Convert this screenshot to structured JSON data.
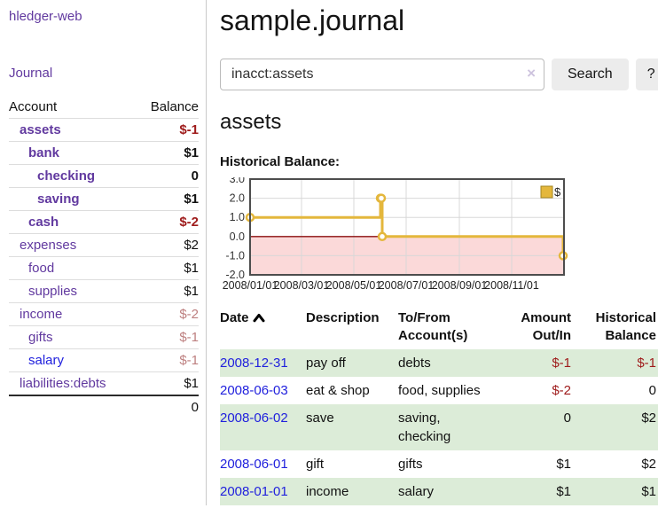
{
  "sidebar": {
    "brand": "hledger-web",
    "nav": {
      "journal": "Journal"
    },
    "accounts_table": {
      "headers": {
        "account": "Account",
        "balance": "Balance"
      },
      "rows": [
        {
          "name": "assets",
          "depth": 1,
          "bold": true,
          "color": "purple",
          "balance": "$-1",
          "balance_class": "neg"
        },
        {
          "name": "bank",
          "depth": 2,
          "bold": true,
          "color": "purple",
          "balance": "$1",
          "balance_class": ""
        },
        {
          "name": "checking",
          "depth": 3,
          "bold": true,
          "color": "purple",
          "balance": "0",
          "balance_class": ""
        },
        {
          "name": "saving",
          "depth": 3,
          "bold": true,
          "color": "purple",
          "balance": "$1",
          "balance_class": ""
        },
        {
          "name": "cash",
          "depth": 2,
          "bold": true,
          "color": "purple",
          "balance": "$-2",
          "balance_class": "neg"
        },
        {
          "name": "expenses",
          "depth": 1,
          "bold": false,
          "color": "purple",
          "balance": "$2",
          "balance_class": ""
        },
        {
          "name": "food",
          "depth": 2,
          "bold": false,
          "color": "purple",
          "balance": "$1",
          "balance_class": ""
        },
        {
          "name": "supplies",
          "depth": 2,
          "bold": false,
          "color": "purple",
          "balance": "$1",
          "balance_class": ""
        },
        {
          "name": "income",
          "depth": 1,
          "bold": false,
          "color": "purple",
          "balance": "$-2",
          "balance_class": "muted"
        },
        {
          "name": "gifts",
          "depth": 2,
          "bold": false,
          "color": "purple",
          "balance": "$-1",
          "balance_class": "muted"
        },
        {
          "name": "salary",
          "depth": 2,
          "bold": false,
          "color": "blue",
          "balance": "$-1",
          "balance_class": "muted"
        },
        {
          "name": "liabilities:debts",
          "depth": 1,
          "bold": false,
          "color": "purple",
          "balance": "$1",
          "balance_class": ""
        }
      ],
      "total": "0"
    }
  },
  "main": {
    "title": "sample.journal",
    "search": {
      "query": "inacct:assets",
      "clear_icon": "×",
      "search_label": "Search",
      "help_label": "?"
    },
    "account_heading": "assets"
  },
  "chart_data": {
    "type": "line",
    "step": true,
    "title": "Historical Balance:",
    "series": [
      {
        "name": "$",
        "points": [
          {
            "date": "2008-01-01",
            "value": 1
          },
          {
            "date": "2008-06-01",
            "value": 2
          },
          {
            "date": "2008-06-02",
            "value": 2
          },
          {
            "date": "2008-06-03",
            "value": 0
          },
          {
            "date": "2008-12-31",
            "value": -1
          }
        ]
      }
    ],
    "x_range": [
      "2008-01-01",
      "2009-01-01"
    ],
    "ylim": [
      -2.0,
      3.0
    ],
    "y_ticks": [
      3.0,
      2.0,
      1.0,
      0.0,
      -1.0,
      -2.0
    ],
    "x_ticks": [
      {
        "date": "2008-01-01",
        "label": "2008/01/01"
      },
      {
        "date": "2008-03-01",
        "label": "2008/03/01"
      },
      {
        "date": "2008-05-01",
        "label": "2008/05/01"
      },
      {
        "date": "2008-07-01",
        "label": "2008/07/01"
      },
      {
        "date": "2008-09-01",
        "label": "2008/09/01"
      },
      {
        "date": "2008-11-01",
        "label": "2008/11/01"
      }
    ],
    "legend": {
      "label": "$",
      "position": "top-right"
    },
    "grid": true,
    "line_color": "#e4b73c",
    "legend_border_color": "#a3841f",
    "negative_region_fill": "#fbd9d9",
    "zero_line_color": "#8b0f0f",
    "grid_color": "#d8d8d8",
    "border_color": "#4d4d4d",
    "axis_label_color": "#333333"
  },
  "register_table": {
    "headers": [
      "Date",
      "Description",
      "To/From Account(s)",
      "Amount Out/In",
      "Historical Balance"
    ],
    "sort_icon": "chevron-up",
    "rows": [
      {
        "date": "2008-12-31",
        "description": "pay off",
        "accounts": "debts",
        "amount": "$-1",
        "amount_class": "neg",
        "balance": "$-1",
        "balance_class": "neg",
        "shade": true
      },
      {
        "date": "2008-06-03",
        "description": "eat & shop",
        "accounts": "food, supplies",
        "amount": "$-2",
        "amount_class": "neg",
        "balance": "0",
        "balance_class": "",
        "shade": false
      },
      {
        "date": "2008-06-02",
        "description": "save",
        "accounts": "saving, checking",
        "amount": "0",
        "amount_class": "",
        "balance": "$2",
        "balance_class": "",
        "shade": true
      },
      {
        "date": "2008-06-01",
        "description": "gift",
        "accounts": "gifts",
        "amount": "$1",
        "amount_class": "",
        "balance": "$2",
        "balance_class": "",
        "shade": false
      },
      {
        "date": "2008-01-01",
        "description": "income",
        "accounts": "salary",
        "amount": "$1",
        "amount_class": "",
        "balance": "$1",
        "balance_class": "",
        "shade": true
      }
    ]
  },
  "colors": {
    "link_purple": "#61399f",
    "link_blue": "#2121dd",
    "negative_red": "#9e1a1a",
    "muted_negative": "#bd7f7f",
    "row_stripe_green": "#dcecd8",
    "chart_gold": "#e4b73c",
    "chart_negative_pink": "#fbd9d9"
  }
}
